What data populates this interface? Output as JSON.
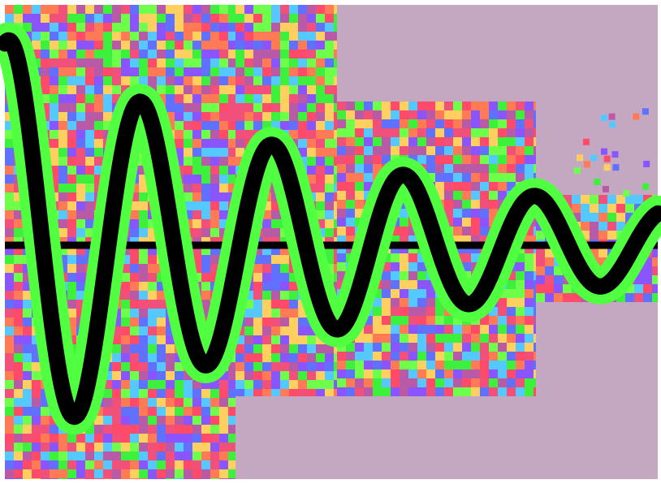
{
  "scene": {
    "background_color": "#c4a8c2",
    "frame_color": "#ffffff",
    "noise_palette": [
      "#ff4a6a",
      "#f0507a",
      "#6dff4a",
      "#3cf03c",
      "#8a55ff",
      "#6070ff",
      "#ff7a55",
      "#b85aa6",
      "#ffd060",
      "#55c8ff"
    ],
    "wave": {
      "stroke_color": "#000000",
      "halo_color": "#50ff40",
      "baseline_color": "#000000",
      "type": "damped-sinusoid"
    }
  }
}
